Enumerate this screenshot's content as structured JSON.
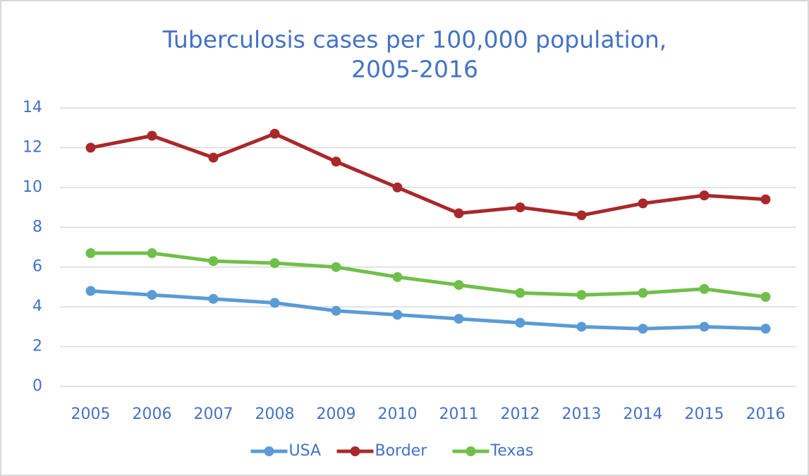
{
  "chart_data": {
    "type": "line",
    "title": [
      "Tuberculosis cases per 100,000 population,",
      "2005-2016"
    ],
    "categories": [
      "2005",
      "2006",
      "2007",
      "2008",
      "2009",
      "2010",
      "2011",
      "2012",
      "2013",
      "2014",
      "2015",
      "2016"
    ],
    "series": [
      {
        "name": "USA",
        "color": "#5b9bd5",
        "values": [
          4.8,
          4.6,
          4.4,
          4.2,
          3.8,
          3.6,
          3.4,
          3.2,
          3.0,
          2.9,
          3.0,
          2.9
        ]
      },
      {
        "name": "Border",
        "color": "#a9282b",
        "values": [
          12.0,
          12.6,
          11.5,
          12.7,
          11.3,
          10.0,
          8.7,
          9.0,
          8.6,
          9.2,
          9.6,
          9.4
        ]
      },
      {
        "name": "Texas",
        "color": "#70bf4a",
        "values": [
          6.7,
          6.7,
          6.3,
          6.2,
          6.0,
          5.5,
          5.1,
          4.7,
          4.6,
          4.7,
          4.9,
          4.5
        ]
      }
    ],
    "ylim": [
      0,
      14
    ],
    "yticks": [
      0,
      2,
      4,
      6,
      8,
      10,
      12,
      14
    ],
    "grid": true,
    "legend": "bottom"
  }
}
